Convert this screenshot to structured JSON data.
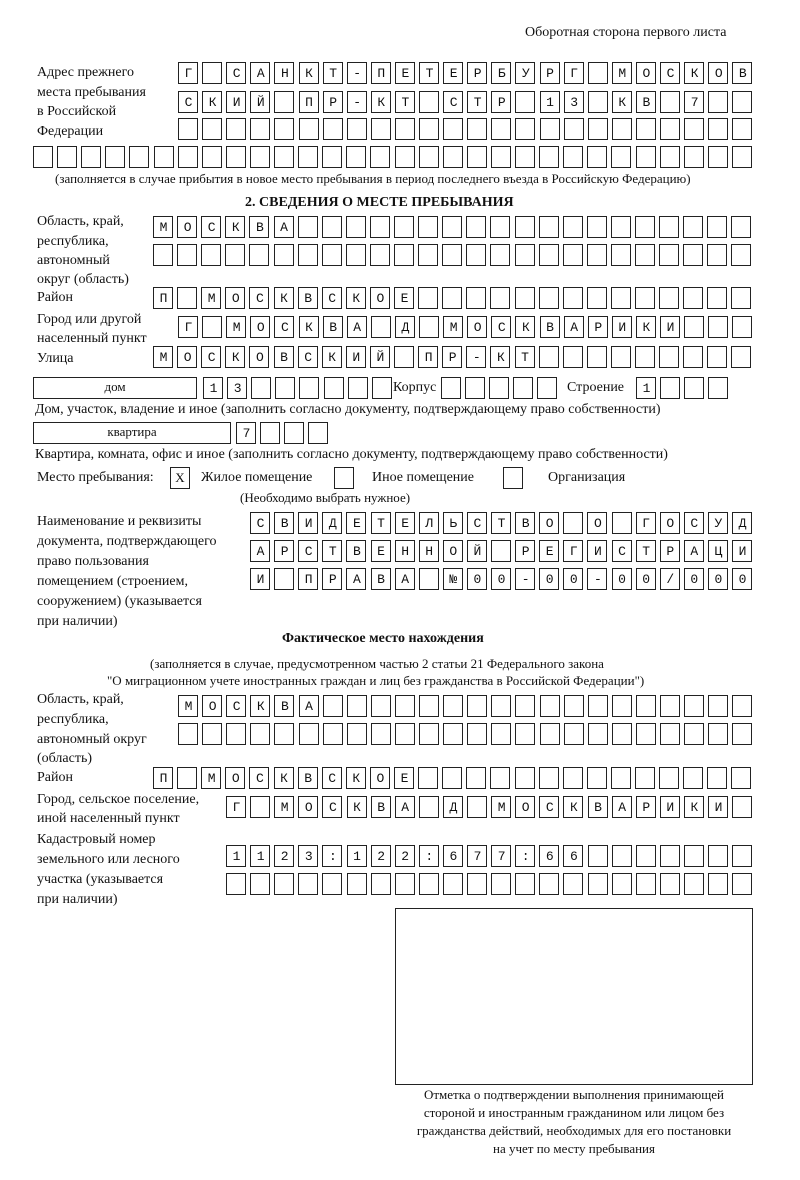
{
  "page_heading": "Оборотная сторона первого листа",
  "prev_address": {
    "label": [
      "Адрес прежнего",
      "места пребывания",
      "в Российской",
      "Федерации"
    ],
    "rows": [
      "Г САНКТ-ПЕТЕРБУРГ МОСКОВ",
      "СКИЙ ПР-КТ СТР 13 КВ 7",
      "",
      ""
    ],
    "note": "(заполняется в случае прибытия в новое место пребывания в период последнего въезда в Российскую Федерацию)"
  },
  "section2": {
    "title": "2. СВЕДЕНИЯ О МЕСТЕ ПРЕБЫВАНИЯ",
    "region_label": [
      "Область, край,",
      "республика,",
      "автономный",
      "округ (область)"
    ],
    "region_rows": [
      "МОСКВА",
      ""
    ],
    "district_label": "Район",
    "district": "П МОСКВСКОЕ",
    "city_label": [
      "Город или другой",
      "населенный пункт"
    ],
    "city": "Г МОСКВА Д МОСКВАРИКИ",
    "street_label": "Улица",
    "street": "МОСКОВСКИЙ ПР-КТ",
    "house_type": "дом",
    "house_number": "13",
    "korpus_label": "Корпус",
    "korpus": "",
    "building_label": "Строение",
    "building": "1",
    "house_caption": "Дом, участок, владение и иное (заполнить согласно документу, подтверждающему право собственности)",
    "flat_type": "квартира",
    "flat_number": "7",
    "flat_caption": "Квартира, комната, офис и иное (заполнить согласно документу, подтверждающему право собственности)",
    "stay_label": "Место пребывания:",
    "stay_options": [
      {
        "label": "Жилое помещение",
        "mark": "Х"
      },
      {
        "label": "Иное помещение",
        "mark": ""
      },
      {
        "label": "Организация",
        "mark": ""
      }
    ],
    "stay_note": "(Необходимо выбрать нужное)",
    "doc_label": [
      "Наименование и реквизиты",
      "документа, подтверждающего",
      "право пользования",
      "помещением (строением,",
      "сооружением) (указывается",
      "при наличии)"
    ],
    "doc_rows": [
      "СВИДЕТЕЛЬСТВО О ГОСУД",
      "АРСТВЕННОЙ РЕГИСТРАЦИ",
      "И ПРАВА №00-00-00/000"
    ]
  },
  "actual": {
    "title": "Фактическое место нахождения",
    "note": [
      "(заполняется в случае, предусмотренном частью 2 статьи 21 Федерального закона",
      "\"О миграционном учете иностранных граждан и лиц без гражданства в Российской Федерации\")"
    ],
    "region_label": [
      "Область, край,",
      "республика,",
      "автономный округ",
      "(область)"
    ],
    "region_rows": [
      "МОСКВА",
      ""
    ],
    "district_label": "Район",
    "district": "П МОСКВСКОЕ",
    "city_label": [
      "Город, сельское поселение,",
      "иной населенный пункт"
    ],
    "city": "Г МОСКВА Д МОСКВАРИКИ",
    "cadastre_label": [
      "Кадастровый номер",
      "земельного или лесного",
      "участка (указывается",
      "при наличии)"
    ],
    "cadastre_rows": [
      "1123:122:677:66",
      ""
    ]
  },
  "confirmation_caption": [
    "Отметка о подтверждении выполнения принимающей",
    "стороной и иностранным гражданином или лицом без",
    "гражданства действий, необходимых для его постановки",
    "на учет по месту пребывания"
  ]
}
